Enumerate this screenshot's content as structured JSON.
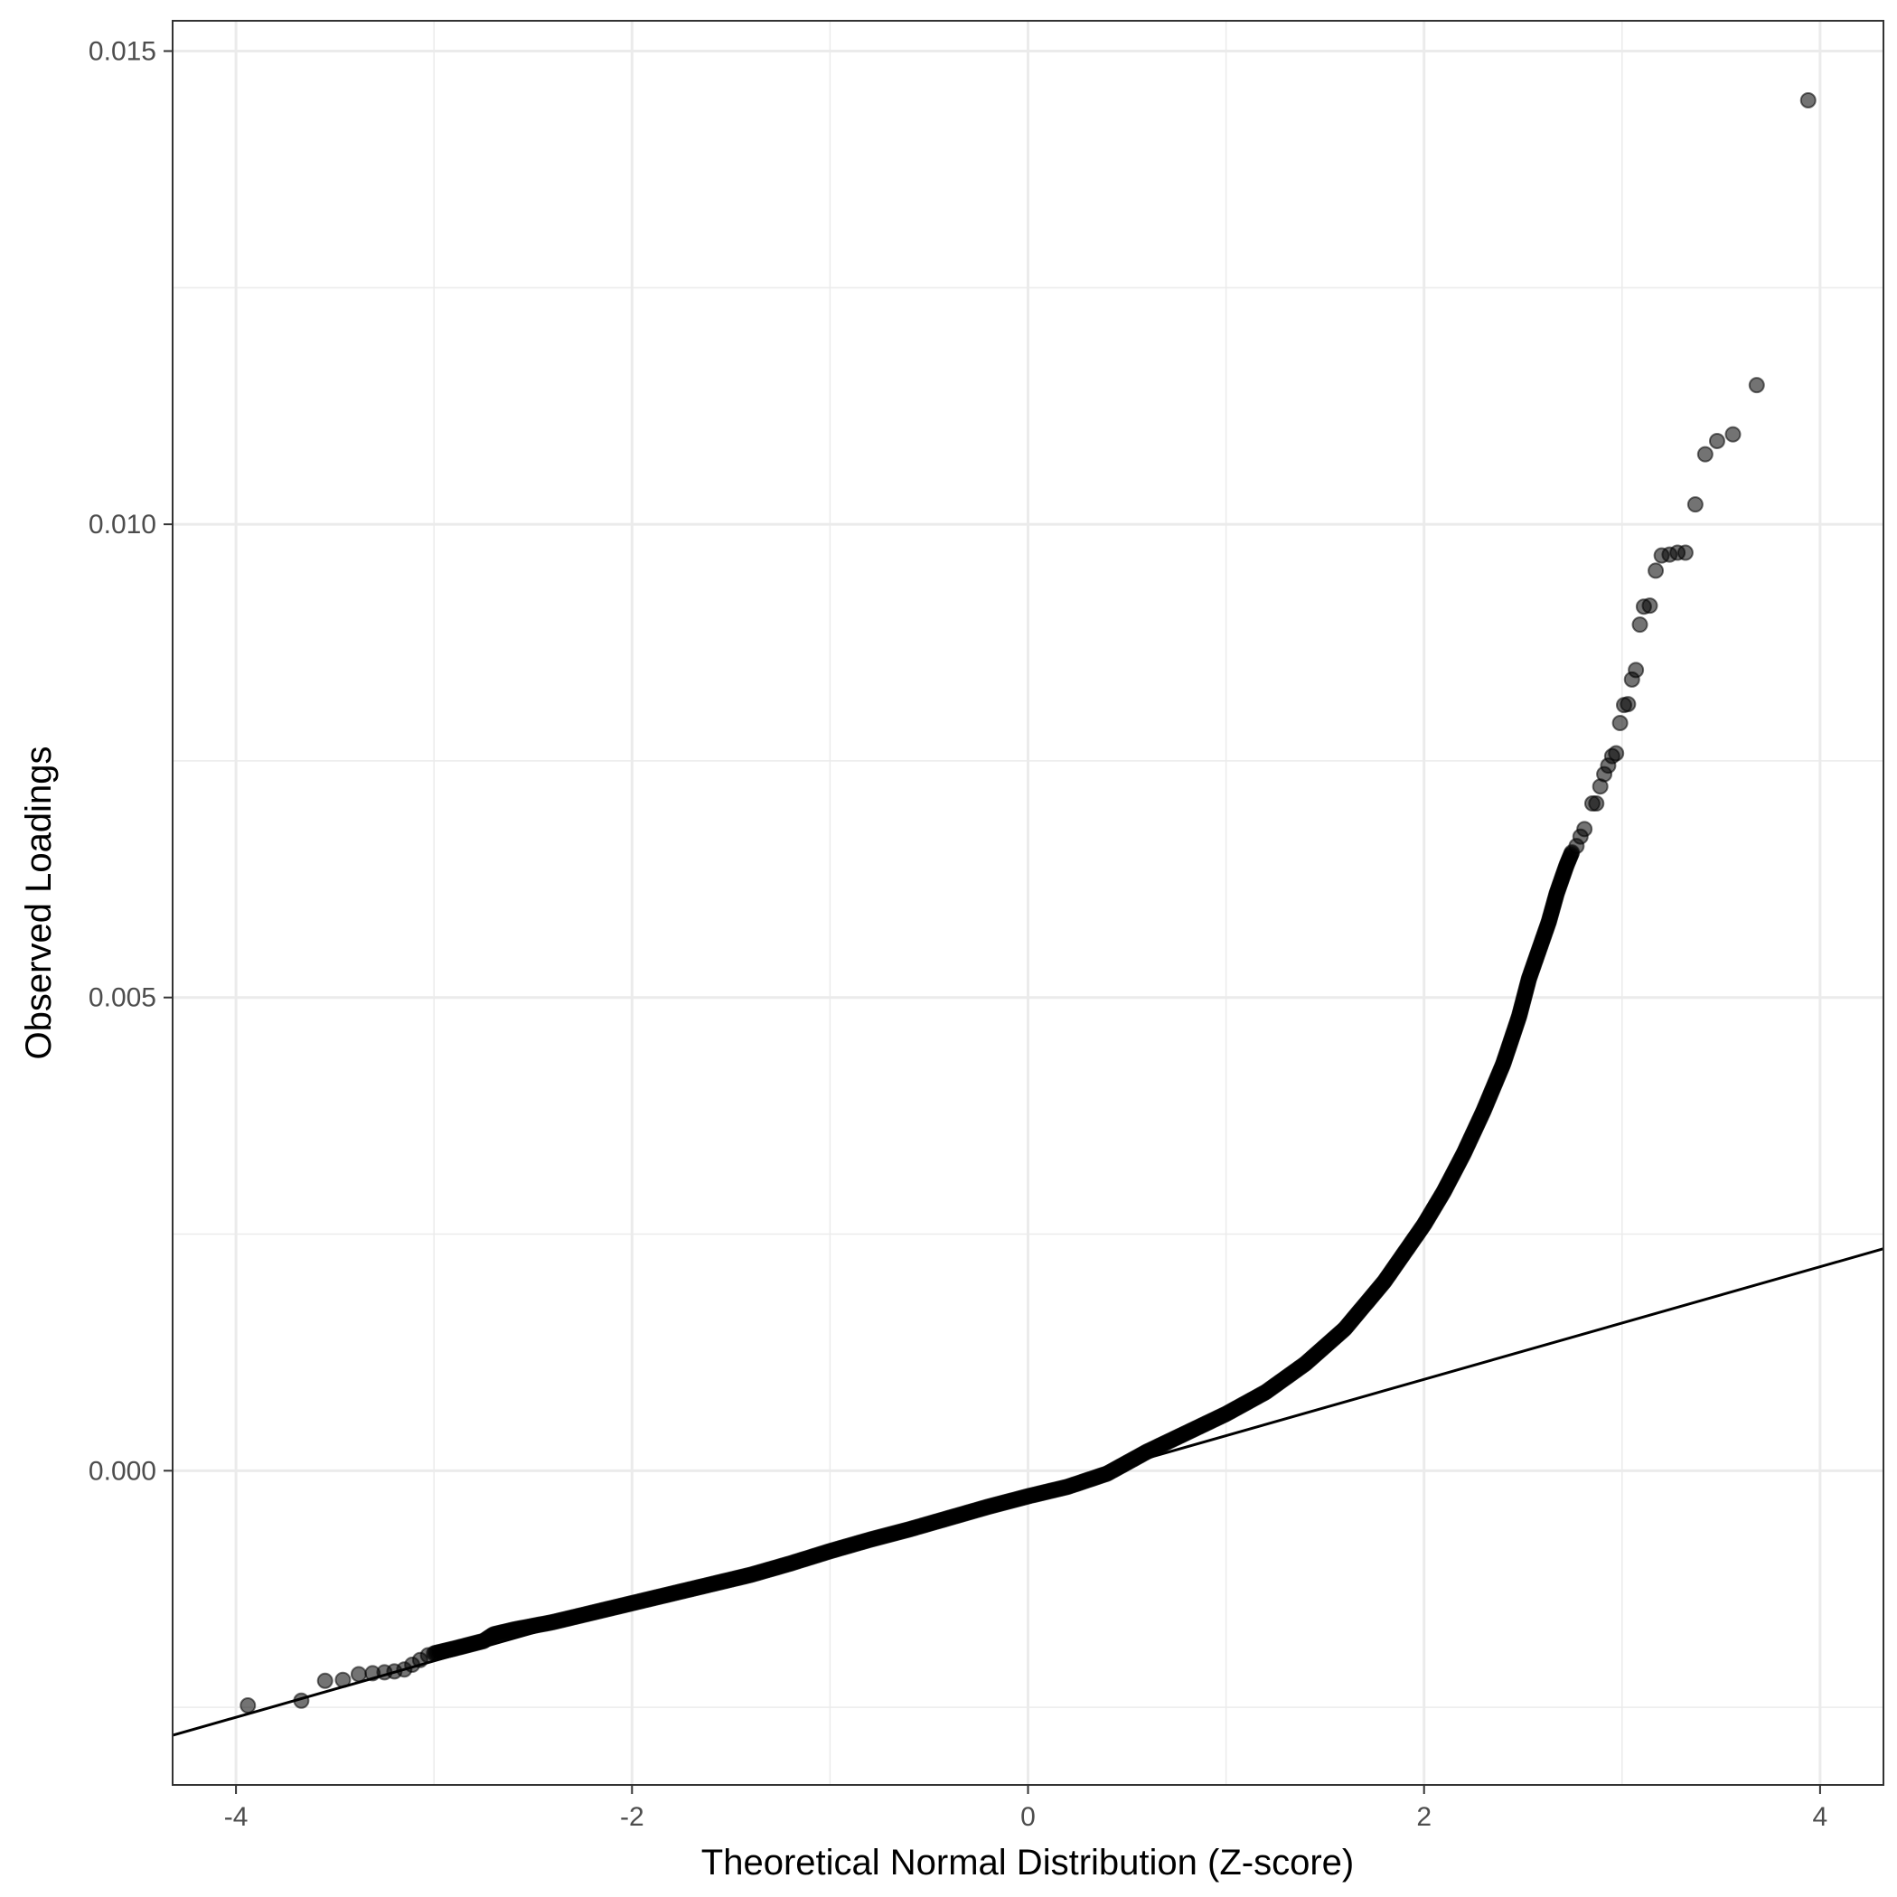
{
  "chart_data": {
    "type": "scatter",
    "title": "",
    "xlabel": "Theoretical Normal Distribution (Z-score)",
    "ylabel": "Observed Loadings",
    "xlim": [
      -4.32,
      4.32
    ],
    "ylim": [
      -0.00332,
      0.01532
    ],
    "x_ticks": [
      -4,
      -2,
      0,
      2,
      4
    ],
    "x_tick_labels": [
      "-4",
      "-2",
      "0",
      "2",
      "4"
    ],
    "y_ticks": [
      0.0,
      0.005,
      0.01,
      0.015
    ],
    "y_tick_labels": [
      "0.000",
      "0.005",
      "0.010",
      "0.015"
    ],
    "grid": true,
    "legend": "none",
    "point_color": "#000000",
    "point_alpha": 0.55,
    "reference_line": {
      "slope": 0.000595,
      "intercept": -0.000225,
      "color": "#000000"
    },
    "tail_points": [
      {
        "x": -3.94,
        "y": -0.00248
      },
      {
        "x": -3.67,
        "y": -0.00243
      },
      {
        "x": -3.55,
        "y": -0.00222
      },
      {
        "x": -3.46,
        "y": -0.00221
      },
      {
        "x": -3.38,
        "y": -0.00215
      },
      {
        "x": -3.31,
        "y": -0.00214
      },
      {
        "x": -3.25,
        "y": -0.00213
      },
      {
        "x": -3.2,
        "y": -0.00212
      },
      {
        "x": -3.15,
        "y": -0.0021
      },
      {
        "x": -3.11,
        "y": -0.00205
      },
      {
        "x": -3.07,
        "y": -0.002
      },
      {
        "x": -3.03,
        "y": -0.00195
      },
      {
        "x": 2.77,
        "y": 0.0066
      },
      {
        "x": 2.79,
        "y": 0.0067
      },
      {
        "x": 2.81,
        "y": 0.00678
      },
      {
        "x": 2.85,
        "y": 0.00705
      },
      {
        "x": 2.87,
        "y": 0.00705
      },
      {
        "x": 2.89,
        "y": 0.00723
      },
      {
        "x": 2.91,
        "y": 0.00736
      },
      {
        "x": 2.93,
        "y": 0.00745
      },
      {
        "x": 2.95,
        "y": 0.00755
      },
      {
        "x": 2.97,
        "y": 0.00758
      },
      {
        "x": 2.99,
        "y": 0.0079
      },
      {
        "x": 3.01,
        "y": 0.00809
      },
      {
        "x": 3.03,
        "y": 0.0081
      },
      {
        "x": 3.05,
        "y": 0.00836
      },
      {
        "x": 3.07,
        "y": 0.00846
      },
      {
        "x": 3.09,
        "y": 0.00894
      },
      {
        "x": 3.11,
        "y": 0.00913
      },
      {
        "x": 3.14,
        "y": 0.00914
      },
      {
        "x": 3.17,
        "y": 0.00951
      },
      {
        "x": 3.2,
        "y": 0.00967
      },
      {
        "x": 3.24,
        "y": 0.00968
      },
      {
        "x": 3.28,
        "y": 0.0097
      },
      {
        "x": 3.32,
        "y": 0.0097
      },
      {
        "x": 3.37,
        "y": 0.01021
      },
      {
        "x": 3.42,
        "y": 0.01074
      },
      {
        "x": 3.48,
        "y": 0.01088
      },
      {
        "x": 3.56,
        "y": 0.01095
      },
      {
        "x": 3.68,
        "y": 0.01147
      },
      {
        "x": 3.94,
        "y": 0.01448
      }
    ],
    "body_curve": [
      {
        "x": -3.0,
        "y": -0.00193
      },
      {
        "x": -2.9,
        "y": -0.00188
      },
      {
        "x": -2.75,
        "y": -0.0018
      },
      {
        "x": -2.7,
        "y": -0.00173
      },
      {
        "x": -2.6,
        "y": -0.00168
      },
      {
        "x": -2.4,
        "y": -0.0016
      },
      {
        "x": -2.2,
        "y": -0.0015
      },
      {
        "x": -2.0,
        "y": -0.0014
      },
      {
        "x": -1.8,
        "y": -0.0013
      },
      {
        "x": -1.6,
        "y": -0.0012
      },
      {
        "x": -1.4,
        "y": -0.0011
      },
      {
        "x": -1.2,
        "y": -0.00098
      },
      {
        "x": -1.0,
        "y": -0.00085
      },
      {
        "x": -0.8,
        "y": -0.00073
      },
      {
        "x": -0.6,
        "y": -0.00062
      },
      {
        "x": -0.4,
        "y": -0.0005
      },
      {
        "x": -0.2,
        "y": -0.00038
      },
      {
        "x": 0.0,
        "y": -0.00027
      },
      {
        "x": 0.2,
        "y": -0.00017
      },
      {
        "x": 0.4,
        "y": -3e-05
      },
      {
        "x": 0.6,
        "y": 0.0002
      },
      {
        "x": 0.8,
        "y": 0.0004
      },
      {
        "x": 1.0,
        "y": 0.0006
      },
      {
        "x": 1.2,
        "y": 0.00083
      },
      {
        "x": 1.4,
        "y": 0.00113
      },
      {
        "x": 1.6,
        "y": 0.0015
      },
      {
        "x": 1.8,
        "y": 0.002
      },
      {
        "x": 2.0,
        "y": 0.0026
      },
      {
        "x": 2.1,
        "y": 0.00295
      },
      {
        "x": 2.2,
        "y": 0.00335
      },
      {
        "x": 2.3,
        "y": 0.0038
      },
      {
        "x": 2.4,
        "y": 0.0043
      },
      {
        "x": 2.48,
        "y": 0.0048
      },
      {
        "x": 2.53,
        "y": 0.0052
      },
      {
        "x": 2.58,
        "y": 0.0055
      },
      {
        "x": 2.63,
        "y": 0.0058
      },
      {
        "x": 2.67,
        "y": 0.0061
      },
      {
        "x": 2.72,
        "y": 0.0064
      },
      {
        "x": 2.75,
        "y": 0.00655
      }
    ]
  }
}
